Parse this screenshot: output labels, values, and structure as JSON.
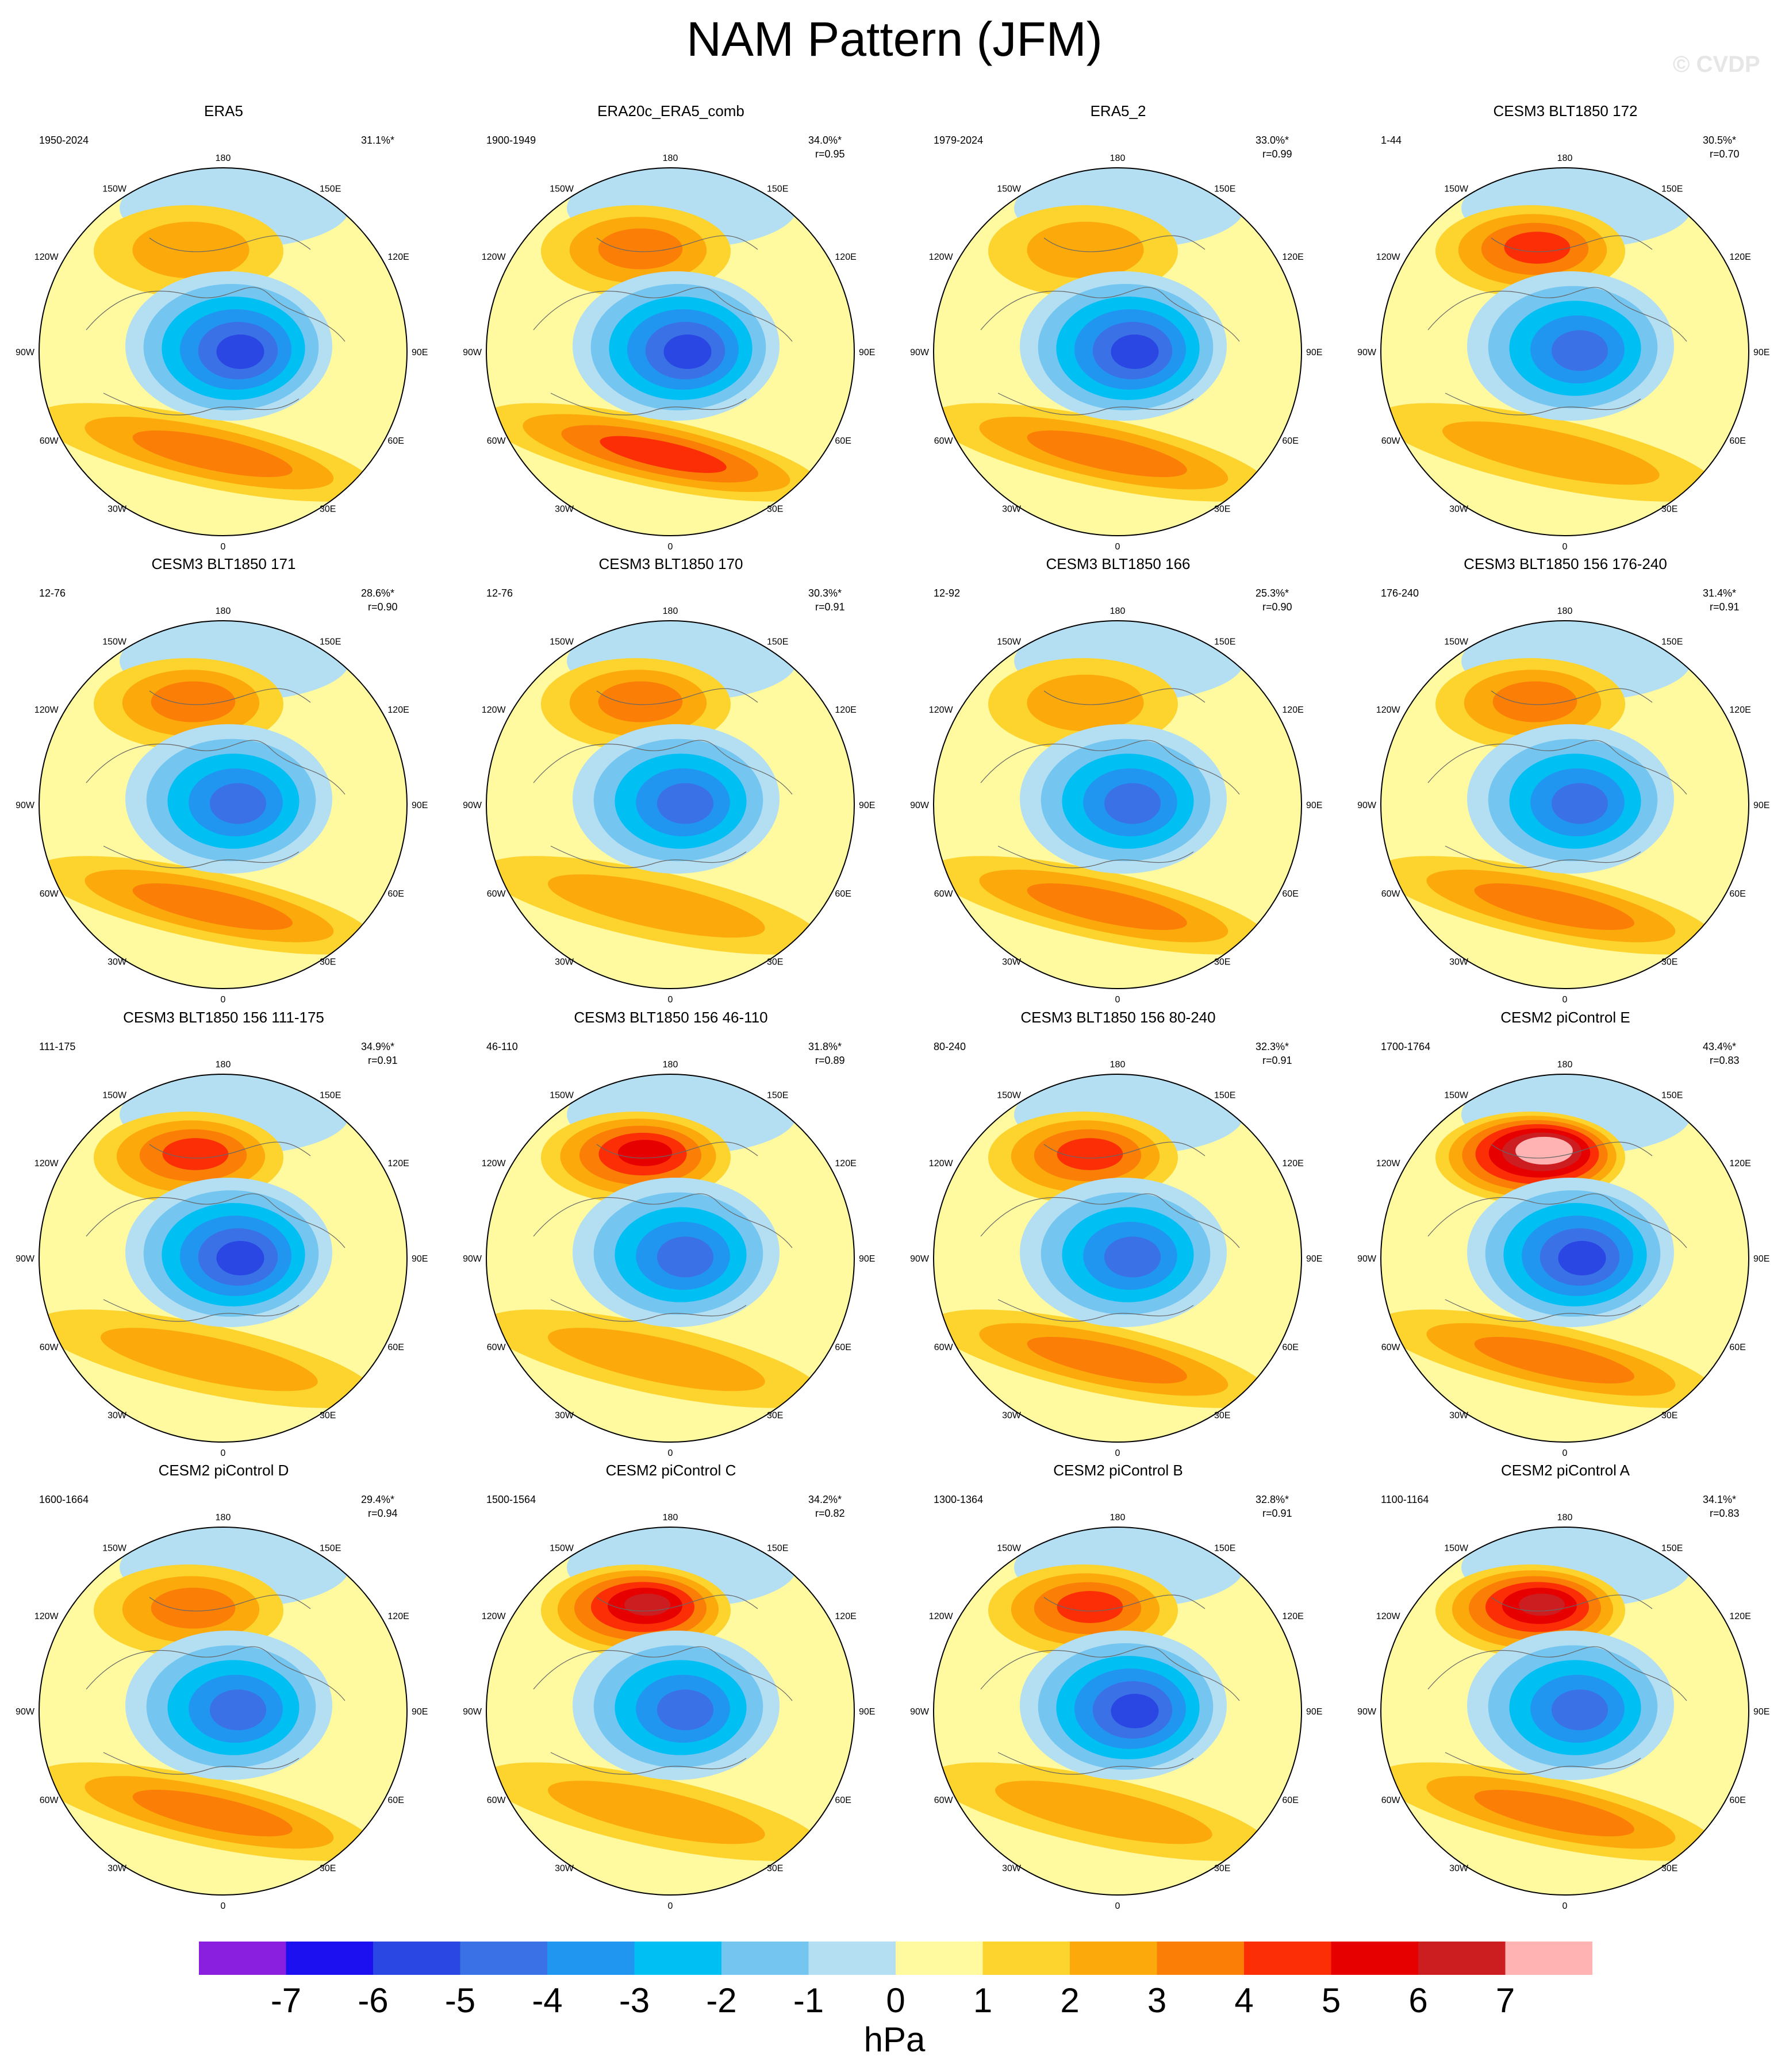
{
  "title": "NAM Pattern (JFM)",
  "watermark": "© CVDP",
  "units": "hPa",
  "colorbar": {
    "levels": [
      "-7",
      "-6",
      "-5",
      "-4",
      "-3",
      "-2",
      "-1",
      "0",
      "1",
      "2",
      "3",
      "4",
      "5",
      "6",
      "7"
    ],
    "colors": [
      "#8a1fe0",
      "#1c10f0",
      "#2a47e3",
      "#3a71e6",
      "#2196f0",
      "#00bff3",
      "#74c6f0",
      "#b4dff2",
      "#fff9a0",
      "#fdd32d",
      "#fba90b",
      "#fb7f07",
      "#fb2e06",
      "#e60000",
      "#cc1e21",
      "#ffb3b3"
    ]
  },
  "map_labels": {
    "lat_top": "180",
    "lat_bottom": "0",
    "left": [
      "150W",
      "120W",
      "90W",
      "60W",
      "30W"
    ],
    "right": [
      "150E",
      "120E",
      "90E",
      "60E",
      "30E"
    ]
  },
  "panels": [
    {
      "title": "ERA5",
      "period": "1950-2024",
      "pct": "31.1%*",
      "r": "",
      "blue": [
        -6,
        -6,
        -6,
        -5,
        -4,
        -3,
        -2,
        -1
      ],
      "orange_pac": 2,
      "orange_atl": 3
    },
    {
      "title": "ERA20c_ERA5_comb",
      "period": "1900-1949",
      "pct": "34.0%*",
      "r": "r=0.95",
      "blue": [
        -6,
        -6,
        -5,
        -5,
        -4,
        -3,
        -2,
        -1
      ],
      "orange_pac": 3,
      "orange_atl": 4
    },
    {
      "title": "ERA5_2",
      "period": "1979-2024",
      "pct": "33.0%*",
      "r": "r=0.99",
      "blue": [
        -6,
        -6,
        -5,
        -4,
        -3,
        -2,
        -1
      ],
      "orange_pac": 2,
      "orange_atl": 3
    },
    {
      "title": "CESM3 BLT1850 172",
      "period": "1-44",
      "pct": "30.5%*",
      "r": "r=0.70",
      "blue": [
        -5,
        -5,
        -4,
        -4,
        -3,
        -2,
        -1
      ],
      "orange_pac": 4,
      "orange_atl": 2
    },
    {
      "title": "CESM3 BLT1850 171",
      "period": "12-76",
      "pct": "28.6%*",
      "r": "r=0.90",
      "blue": [
        -5,
        -5,
        -4,
        -3,
        -2,
        -1
      ],
      "orange_pac": 3,
      "orange_atl": 3
    },
    {
      "title": "CESM3 BLT1850 170",
      "period": "12-76",
      "pct": "30.3%*",
      "r": "r=0.91",
      "blue": [
        -5,
        -5,
        -4,
        -3,
        -2,
        -1
      ],
      "orange_pac": 3,
      "orange_atl": 2
    },
    {
      "title": "CESM3 BLT1850 166",
      "period": "12-92",
      "pct": "25.3%*",
      "r": "r=0.90",
      "blue": [
        -5,
        -4,
        -4,
        -3,
        -2,
        -1
      ],
      "orange_pac": 2,
      "orange_atl": 3
    },
    {
      "title": "CESM3 BLT1850 156 176-240",
      "period": "176-240",
      "pct": "31.4%*",
      "r": "r=0.91",
      "blue": [
        -5,
        -5,
        -4,
        -3,
        -2,
        -1
      ],
      "orange_pac": 3,
      "orange_atl": 3
    },
    {
      "title": "CESM3 BLT1850 156 111-175",
      "period": "111-175",
      "pct": "34.9%*",
      "r": "r=0.91",
      "blue": [
        -6,
        -5,
        -5,
        -4,
        -3,
        -2,
        -1
      ],
      "orange_pac": 4,
      "orange_atl": 2
    },
    {
      "title": "CESM3 BLT1850 156 46-110",
      "period": "46-110",
      "pct": "31.8%*",
      "r": "r=0.89",
      "blue": [
        -5,
        -5,
        -4,
        -3,
        -2,
        -1
      ],
      "orange_pac": 5,
      "orange_atl": 2
    },
    {
      "title": "CESM3 BLT1850 156 80-240",
      "period": "80-240",
      "pct": "32.3%*",
      "r": "r=0.91",
      "blue": [
        -5,
        -5,
        -4,
        -3,
        -2,
        -1
      ],
      "orange_pac": 4,
      "orange_atl": 3
    },
    {
      "title": "CESM2 piControl E",
      "period": "1700-1764",
      "pct": "43.4%*",
      "r": "r=0.83",
      "blue": [
        -6,
        -6,
        -5,
        -4,
        -3,
        -2,
        -1
      ],
      "orange_pac": 8,
      "orange_atl": 3
    },
    {
      "title": "CESM2 piControl D",
      "period": "1600-1664",
      "pct": "29.4%*",
      "r": "r=0.94",
      "blue": [
        -5,
        -5,
        -4,
        -3,
        -2,
        -1
      ],
      "orange_pac": 3,
      "orange_atl": 3
    },
    {
      "title": "CESM2 piControl C",
      "period": "1500-1564",
      "pct": "34.2%*",
      "r": "r=0.82",
      "blue": [
        -5,
        -5,
        -4,
        -3,
        -2,
        -1
      ],
      "orange_pac": 6,
      "orange_atl": 2
    },
    {
      "title": "CESM2 piControl B",
      "period": "1300-1364",
      "pct": "32.8%*",
      "r": "r=0.91",
      "blue": [
        -6,
        -5,
        -5,
        -4,
        -3,
        -2,
        -1
      ],
      "orange_pac": 4,
      "orange_atl": 2
    },
    {
      "title": "CESM2 piControl A",
      "period": "1100-1164",
      "pct": "34.1%*",
      "r": "r=0.83",
      "blue": [
        -5,
        -5,
        -4,
        -3,
        -2,
        -1
      ],
      "orange_pac": 6,
      "orange_atl": 3
    }
  ]
}
